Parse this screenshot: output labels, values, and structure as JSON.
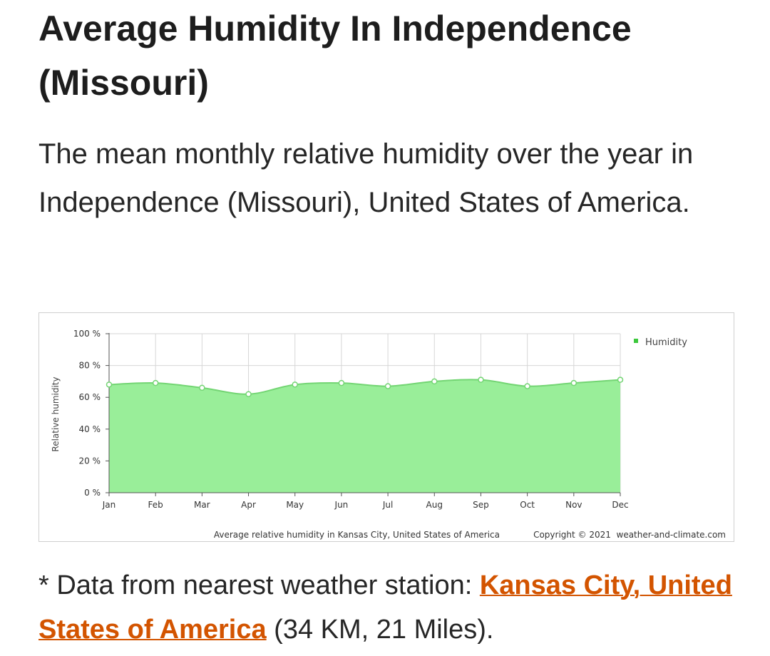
{
  "page": {
    "title": "Average Humidity In Independence (Missouri)",
    "intro": "The mean monthly relative humidity over the year in Independence (Missouri), United States of America."
  },
  "chart_data": {
    "type": "area",
    "title": "",
    "xlabel": "",
    "ylabel": "Relative humidity",
    "categories": [
      "Jan",
      "Feb",
      "Mar",
      "Apr",
      "May",
      "Jun",
      "Jul",
      "Aug",
      "Sep",
      "Oct",
      "Nov",
      "Dec"
    ],
    "series": [
      {
        "name": "Humidity",
        "values": [
          68,
          69,
          66,
          62,
          68,
          69,
          67,
          70,
          71,
          67,
          69,
          71
        ]
      }
    ],
    "ylim": [
      0,
      100
    ],
    "yticks": [
      "0 %",
      "20 %",
      "40 %",
      "60 %",
      "80 %",
      "100 %"
    ],
    "grid": true,
    "legend": "top-right",
    "colors": {
      "area_fill": "#99ee99",
      "line": "#73d573",
      "marker_fill": "#ffffff",
      "marker_stroke": "#73d573",
      "legend_swatch": "#3cc83c",
      "grid": "#d6d6d6",
      "axis": "#555555"
    },
    "caption": "Average relative humidity in Kansas City, United States of America",
    "copyright": "Copyright © 2021  weather-and-climate.com"
  },
  "footnote": {
    "prefix": "* Data from nearest weather station: ",
    "link": "Kansas City, United States of America",
    "suffix": " (34 KM, 21 Miles)."
  }
}
